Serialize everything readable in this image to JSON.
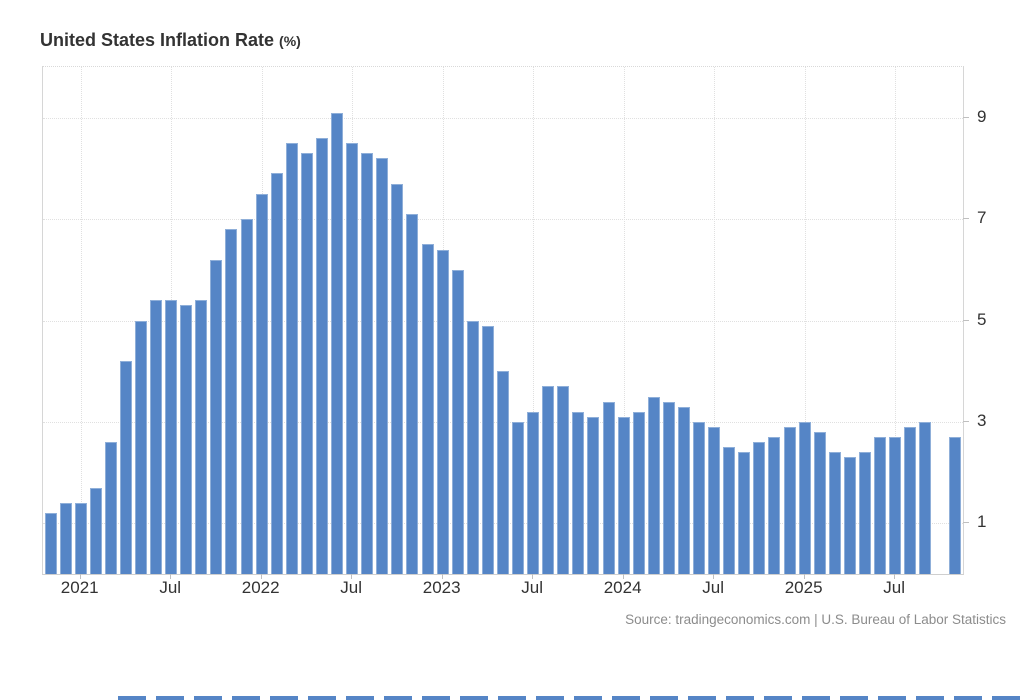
{
  "page": {
    "title_text": "United States Inflation Rate",
    "title_unit": "(%)",
    "source_text": "Source: tradingeconomics.com | U.S. Bureau of Labor Statistics"
  },
  "colors": {
    "bar_fill": "#5585C6",
    "bar_border": "#8FAFD9",
    "grid": "#E0E0E0",
    "frame": "#D6D6D6",
    "axis_label": "#333333",
    "source_text": "#8C8C8C",
    "title_text": "#333333"
  },
  "chart_data": {
    "type": "bar",
    "title": "United States Inflation Rate (%)",
    "xlabel": "",
    "ylabel": "",
    "ylim": [
      0,
      10
    ],
    "yticks": [
      1,
      3,
      5,
      7,
      9
    ],
    "grid": "dotted",
    "legend_position": "none",
    "x_axis_ticks": [
      {
        "label": "2021",
        "slot": 3
      },
      {
        "label": "Jul",
        "slot": 9
      },
      {
        "label": "2022",
        "slot": 15
      },
      {
        "label": "Jul",
        "slot": 21
      },
      {
        "label": "2023",
        "slot": 27
      },
      {
        "label": "Jul",
        "slot": 33
      },
      {
        "label": "2024",
        "slot": 39
      },
      {
        "label": "Jul",
        "slot": 45
      },
      {
        "label": "2025",
        "slot": 51
      },
      {
        "label": "Jul",
        "slot": 57
      }
    ],
    "points": [
      {
        "month": "Nov 2020",
        "value": 1.2
      },
      {
        "month": "Dec 2020",
        "value": 1.4
      },
      {
        "month": "Jan 2021",
        "value": 1.4
      },
      {
        "month": "Feb 2021",
        "value": 1.7
      },
      {
        "month": "Mar 2021",
        "value": 2.6
      },
      {
        "month": "Apr 2021",
        "value": 4.2
      },
      {
        "month": "May 2021",
        "value": 5.0
      },
      {
        "month": "Jun 2021",
        "value": 5.4
      },
      {
        "month": "Jul 2021",
        "value": 5.4
      },
      {
        "month": "Aug 2021",
        "value": 5.3
      },
      {
        "month": "Sep 2021",
        "value": 5.4
      },
      {
        "month": "Oct 2021",
        "value": 6.2
      },
      {
        "month": "Nov 2021",
        "value": 6.8
      },
      {
        "month": "Dec 2021",
        "value": 7.0
      },
      {
        "month": "Jan 2022",
        "value": 7.5
      },
      {
        "month": "Feb 2022",
        "value": 7.9
      },
      {
        "month": "Mar 2022",
        "value": 8.5
      },
      {
        "month": "Apr 2022",
        "value": 8.3
      },
      {
        "month": "May 2022",
        "value": 8.6
      },
      {
        "month": "Jun 2022",
        "value": 9.1
      },
      {
        "month": "Jul 2022",
        "value": 8.5
      },
      {
        "month": "Aug 2022",
        "value": 8.3
      },
      {
        "month": "Sep 2022",
        "value": 8.2
      },
      {
        "month": "Oct 2022",
        "value": 7.7
      },
      {
        "month": "Nov 2022",
        "value": 7.1
      },
      {
        "month": "Dec 2022",
        "value": 6.5
      },
      {
        "month": "Jan 2023",
        "value": 6.4
      },
      {
        "month": "Feb 2023",
        "value": 6.0
      },
      {
        "month": "Mar 2023",
        "value": 5.0
      },
      {
        "month": "Apr 2023",
        "value": 4.9
      },
      {
        "month": "May 2023",
        "value": 4.0
      },
      {
        "month": "Jun 2023",
        "value": 3.0
      },
      {
        "month": "Jul 2023",
        "value": 3.2
      },
      {
        "month": "Aug 2023",
        "value": 3.7
      },
      {
        "month": "Sep 2023",
        "value": 3.7
      },
      {
        "month": "Oct 2023",
        "value": 3.2
      },
      {
        "month": "Nov 2023",
        "value": 3.1
      },
      {
        "month": "Dec 2023",
        "value": 3.4
      },
      {
        "month": "Jan 2024",
        "value": 3.1
      },
      {
        "month": "Feb 2024",
        "value": 3.2
      },
      {
        "month": "Mar 2024",
        "value": 3.5
      },
      {
        "month": "Apr 2024",
        "value": 3.4
      },
      {
        "month": "May 2024",
        "value": 3.3
      },
      {
        "month": "Jun 2024",
        "value": 3.0
      },
      {
        "month": "Jul 2024",
        "value": 2.9
      },
      {
        "month": "Aug 2024",
        "value": 2.5
      },
      {
        "month": "Sep 2024",
        "value": 2.4
      },
      {
        "month": "Oct 2024",
        "value": 2.6
      },
      {
        "month": "Nov 2024",
        "value": 2.7
      },
      {
        "month": "Dec 2024",
        "value": 2.9
      },
      {
        "month": "Jan 2025",
        "value": 3.0
      },
      {
        "month": "Feb 2025",
        "value": 2.8
      },
      {
        "month": "Mar 2025",
        "value": 2.4
      },
      {
        "month": "Apr 2025",
        "value": 2.3
      },
      {
        "month": "May 2025",
        "value": 2.4
      },
      {
        "month": "Jun 2025",
        "value": 2.7
      },
      {
        "month": "Jul 2025",
        "value": 2.7
      },
      {
        "month": "Aug 2025",
        "value": 2.9
      },
      {
        "month": "Sep 2025",
        "value": 3.0
      },
      {
        "month": "Oct 2025",
        "value": null
      },
      {
        "month": "Nov 2025",
        "value": 2.7
      }
    ],
    "source": "Source: tradingeconomics.com | U.S. Bureau of Labor Statistics"
  }
}
